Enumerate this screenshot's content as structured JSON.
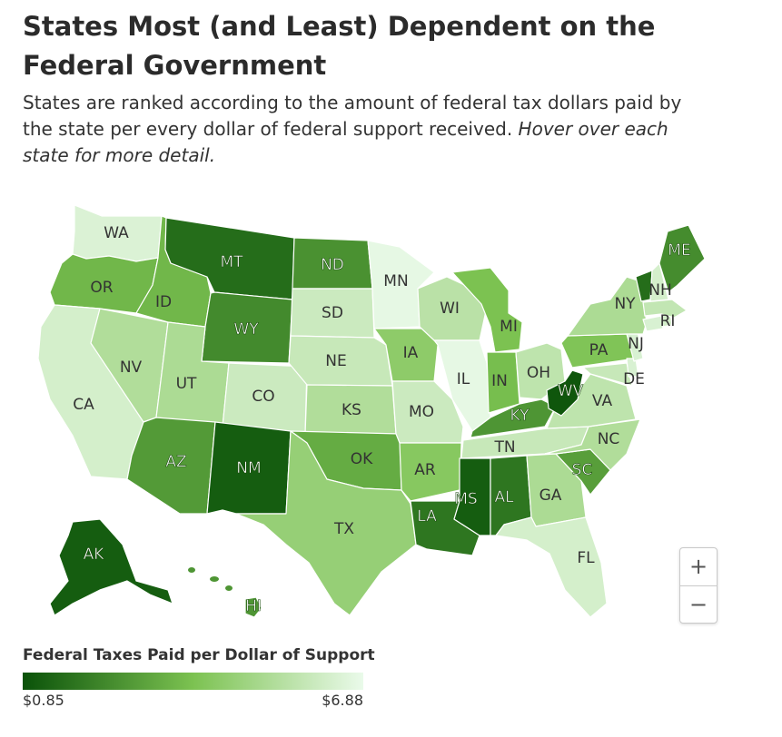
{
  "header": {
    "title": "States Most (and Least) Dependent on the Federal Government",
    "subtitle": "States are ranked according to the amount of federal tax dollars paid by the state per every dollar of federal support received.",
    "subtitle_hint": "Hover over each state for more detail."
  },
  "colors": {
    "scale_dark": "#0a5209",
    "scale_mid": "#7cc251",
    "scale_light": "#eafaea",
    "border": "#ffffff"
  },
  "states": [
    {
      "code": "WA",
      "shade": 0.93
    },
    {
      "code": "OR",
      "shade": 0.45
    },
    {
      "code": "CA",
      "shade": 0.9
    },
    {
      "code": "NV",
      "shade": 0.74
    },
    {
      "code": "ID",
      "shade": 0.45
    },
    {
      "code": "MT",
      "shade": 0.12
    },
    {
      "code": "WY",
      "shade": 0.25
    },
    {
      "code": "UT",
      "shade": 0.72
    },
    {
      "code": "AZ",
      "shade": 0.32
    },
    {
      "code": "CO",
      "shade": 0.86
    },
    {
      "code": "NM",
      "shade": 0.05
    },
    {
      "code": "ND",
      "shade": 0.28
    },
    {
      "code": "SD",
      "shade": 0.86
    },
    {
      "code": "NE",
      "shade": 0.84
    },
    {
      "code": "KS",
      "shade": 0.74
    },
    {
      "code": "OK",
      "shade": 0.4
    },
    {
      "code": "TX",
      "shade": 0.62
    },
    {
      "code": "MN",
      "shade": 0.98
    },
    {
      "code": "IA",
      "shade": 0.58
    },
    {
      "code": "MO",
      "shade": 0.86
    },
    {
      "code": "AR",
      "shade": 0.55
    },
    {
      "code": "LA",
      "shade": 0.16
    },
    {
      "code": "WI",
      "shade": 0.78
    },
    {
      "code": "IL",
      "shade": 0.98
    },
    {
      "code": "MI",
      "shade": 0.5
    },
    {
      "code": "IN",
      "shade": 0.48
    },
    {
      "code": "OH",
      "shade": 0.8
    },
    {
      "code": "KY",
      "shade": 0.3
    },
    {
      "code": "TN",
      "shade": 0.84
    },
    {
      "code": "MS",
      "shade": 0.05
    },
    {
      "code": "AL",
      "shade": 0.16
    },
    {
      "code": "GA",
      "shade": 0.72
    },
    {
      "code": "FL",
      "shade": 0.9
    },
    {
      "code": "SC",
      "shade": 0.34
    },
    {
      "code": "NC",
      "shade": 0.74
    },
    {
      "code": "VA",
      "shade": 0.8
    },
    {
      "code": "WV",
      "shade": 0.02
    },
    {
      "code": "PA",
      "shade": 0.52
    },
    {
      "code": "NY",
      "shade": 0.72
    },
    {
      "code": "VT",
      "shade": 0.12
    },
    {
      "code": "NH",
      "shade": 0.9
    },
    {
      "code": "ME",
      "shade": 0.26
    },
    {
      "code": "MA",
      "shade": 0.82
    },
    {
      "code": "RI",
      "shade": 0.9
    },
    {
      "code": "CT",
      "shade": 0.92
    },
    {
      "code": "NJ",
      "shade": 0.92
    },
    {
      "code": "DE",
      "shade": 0.92
    },
    {
      "code": "MD",
      "shade": 0.84
    },
    {
      "code": "AK",
      "shade": 0.05
    },
    {
      "code": "HI",
      "shade": 0.3
    }
  ],
  "labels": {
    "WA": "WA",
    "OR": "OR",
    "CA": "CA",
    "NV": "NV",
    "ID": "ID",
    "MT": "MT",
    "WY": "WY",
    "UT": "UT",
    "AZ": "AZ",
    "CO": "CO",
    "NM": "NM",
    "ND": "ND",
    "SD": "SD",
    "NE": "NE",
    "KS": "KS",
    "OK": "OK",
    "TX": "TX",
    "MN": "MN",
    "IA": "IA",
    "MO": "MO",
    "AR": "AR",
    "LA": "LA",
    "WI": "WI",
    "IL": "IL",
    "MI": "MI",
    "IN": "IN",
    "OH": "OH",
    "KY": "KY",
    "TN": "TN",
    "MS": "MS",
    "AL": "AL",
    "GA": "GA",
    "FL": "FL",
    "SC": "SC",
    "NC": "NC",
    "VA": "VA",
    "WV": "WV",
    "PA": "PA",
    "NY": "NY",
    "NH": "NH",
    "ME": "ME",
    "RI": "RI",
    "NJ": "NJ",
    "DE": "DE",
    "AK": "AK",
    "HI": "HI"
  },
  "zoom": {
    "in_label": "+",
    "out_label": "−"
  },
  "legend": {
    "title": "Federal Taxes Paid per Dollar of Support",
    "min_label": "$0.85",
    "max_label": "$6.88",
    "min_value": 0.85,
    "max_value": 6.88
  }
}
